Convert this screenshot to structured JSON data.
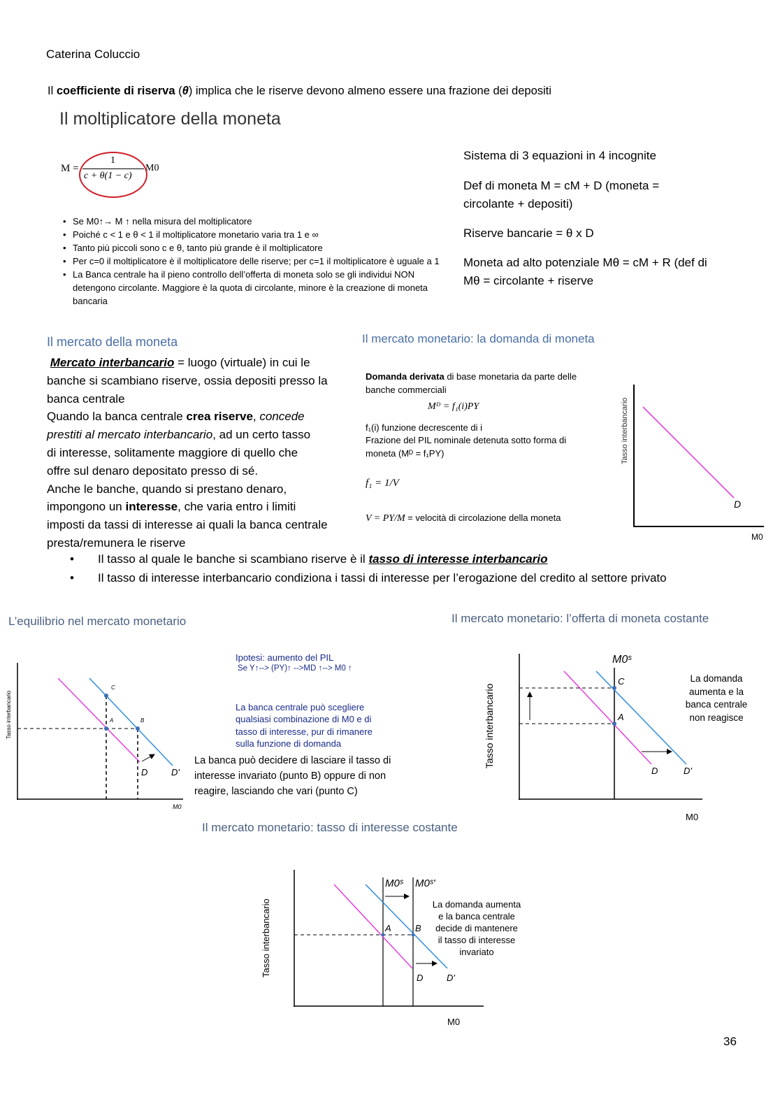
{
  "author": "Caterina Coluccio",
  "intro": {
    "pre": "Il ",
    "bold": "coefficiente di riserva",
    "mid": " (",
    "symbol": "θ",
    "post": ") implica che le riserve devono almeno essere una frazione dei depositi"
  },
  "section1": {
    "title": "Il moltiplicatore della moneta",
    "formula": {
      "lhs": "M =",
      "numerator": "1",
      "denominator": "c + θ(1 − c)",
      "rhs": "M0"
    },
    "bullets": [
      "Se M0↑→ M ↑ nella misura del moltiplicatore",
      "Poiché c < 1 e θ < 1 il moltiplicatore monetario varia tra 1 e ∞",
      "Tanto più piccoli sono c e θ, tanto più grande è il moltiplicatore",
      "Per c=0 il moltiplicatore è il moltiplicatore delle riserve; per c=1 il moltiplicatore è uguale a 1",
      "La Banca centrale ha il pieno controllo dell’offerta di moneta solo se gli individui NON detengono circolante. Maggiore è la quota di circolante, minore è la creazione di moneta bancaria"
    ],
    "right": [
      "Sistema di 3 equazioni in 4 incognite",
      "Def di moneta M = cM + D (moneta =",
      "circolante + depositi)",
      "Riserve bancarie = θ x D",
      "Moneta ad alto potenziale Mθ = cM +  R (def di",
      "Mθ = circolante + riserve"
    ]
  },
  "section2": {
    "title": "Il mercato della moneta",
    "term": "Mercato interbancario",
    "lines": [
      " = luogo (virtuale) in cui le",
      "banche si scambiano riserve, ossia depositi presso la",
      "banca centrale",
      " Quando la banca centrale ",
      "crea riserve",
      ", ",
      "concede",
      "prestiti al mercato interbancario",
      ", ad un certo tasso",
      "di interesse, solitamente maggiore di quello che",
      "offre sul denaro depositato presso di sé.",
      " Anche le banche, quando si prestano denaro,",
      "impongono un ",
      "interesse",
      ", che varia entro i limiti",
      "imposti da tassi di interesse ai quali la banca centrale",
      "presta/remunera le riserve"
    ],
    "bullets": [
      {
        "text": "Il tasso al quale le banche si scambiano riserve è il ",
        "emph": "tasso di interesse interbancario"
      },
      {
        "text": "Il tasso di interesse interbancario condiziona i tassi di interesse per l’erogazione del credito al settore privato",
        "emph": ""
      }
    ]
  },
  "demand": {
    "title": "Il mercato monetario: la domanda di moneta",
    "bold": "Domanda derivata",
    "l1": " di base monetaria da parte delle",
    "l2": "banche commerciali",
    "eq1": "Mᴰ = f₁(i)PY",
    "l3": "f₁(i)  funzione decrescente di i",
    "l4": "Frazione del PIL nominale detenuta sotto forma di",
    "l5": "moneta (Mᴰ = f₁PY)",
    "eq2": "f₁ = 1/V",
    "eq3a": "V = PY/M",
    "eq3b": "= velocità di circolazione della moneta",
    "chart": {
      "ylabel": "Tasso interbancario",
      "xlabel": "M0",
      "curve": "D"
    }
  },
  "equilibrium": {
    "title": "L’equilibrio nel mercato monetario",
    "chart": {
      "ylabel": "Tasso interbancario",
      "xlabel": "M0",
      "points": [
        "C",
        "A",
        "B"
      ],
      "curves": [
        "D",
        "D'"
      ]
    },
    "hyp1": "Ipotesi: aumento del PIL",
    "hyp2": "Se Y↑--> (PY)↑ -->MD ↑--> M0 ↑",
    "choice": [
      "La banca centrale può scegliere",
      "qualsiasi combinazione di M0 e di",
      "tasso di interesse, pur di rimanere",
      "sulla funzione di domanda"
    ],
    "decide": [
      "La banca può decidere di lasciare il tasso di",
      "interesse invariato (punto B) oppure di non",
      "reagire, lasciando che vari (punto C)"
    ]
  },
  "supply_const": {
    "title": "Il mercato monetario: l’offerta di moneta costante",
    "chart": {
      "ylabel": "Tasso interbancario",
      "xlabel": "M0",
      "supply": "M0ˢ",
      "points": [
        "C",
        "A"
      ],
      "curves": [
        "D",
        "D'"
      ]
    },
    "note": [
      "La domanda",
      "aumenta e la",
      "banca centrale",
      "non reagisce"
    ]
  },
  "rate_const": {
    "title": "Il mercato monetario: tasso di interesse costante",
    "chart": {
      "ylabel": "Tasso interbancario",
      "xlabel": "M0",
      "supply1": "M0ˢ",
      "supply2": "M0ˢ'",
      "points": [
        "A",
        "B"
      ],
      "curves": [
        "D",
        "D'"
      ]
    },
    "note": [
      "La domanda aumenta",
      "e la banca centrale",
      "decide di mantenere",
      "il tasso di interesse",
      "invariato"
    ]
  },
  "page_number": "36",
  "colors": {
    "heading_blue": "#4a6fa5",
    "demand_pink": "#e83ee0",
    "demand_blue": "#2f8ee0",
    "circle_red": "#d0202a"
  }
}
